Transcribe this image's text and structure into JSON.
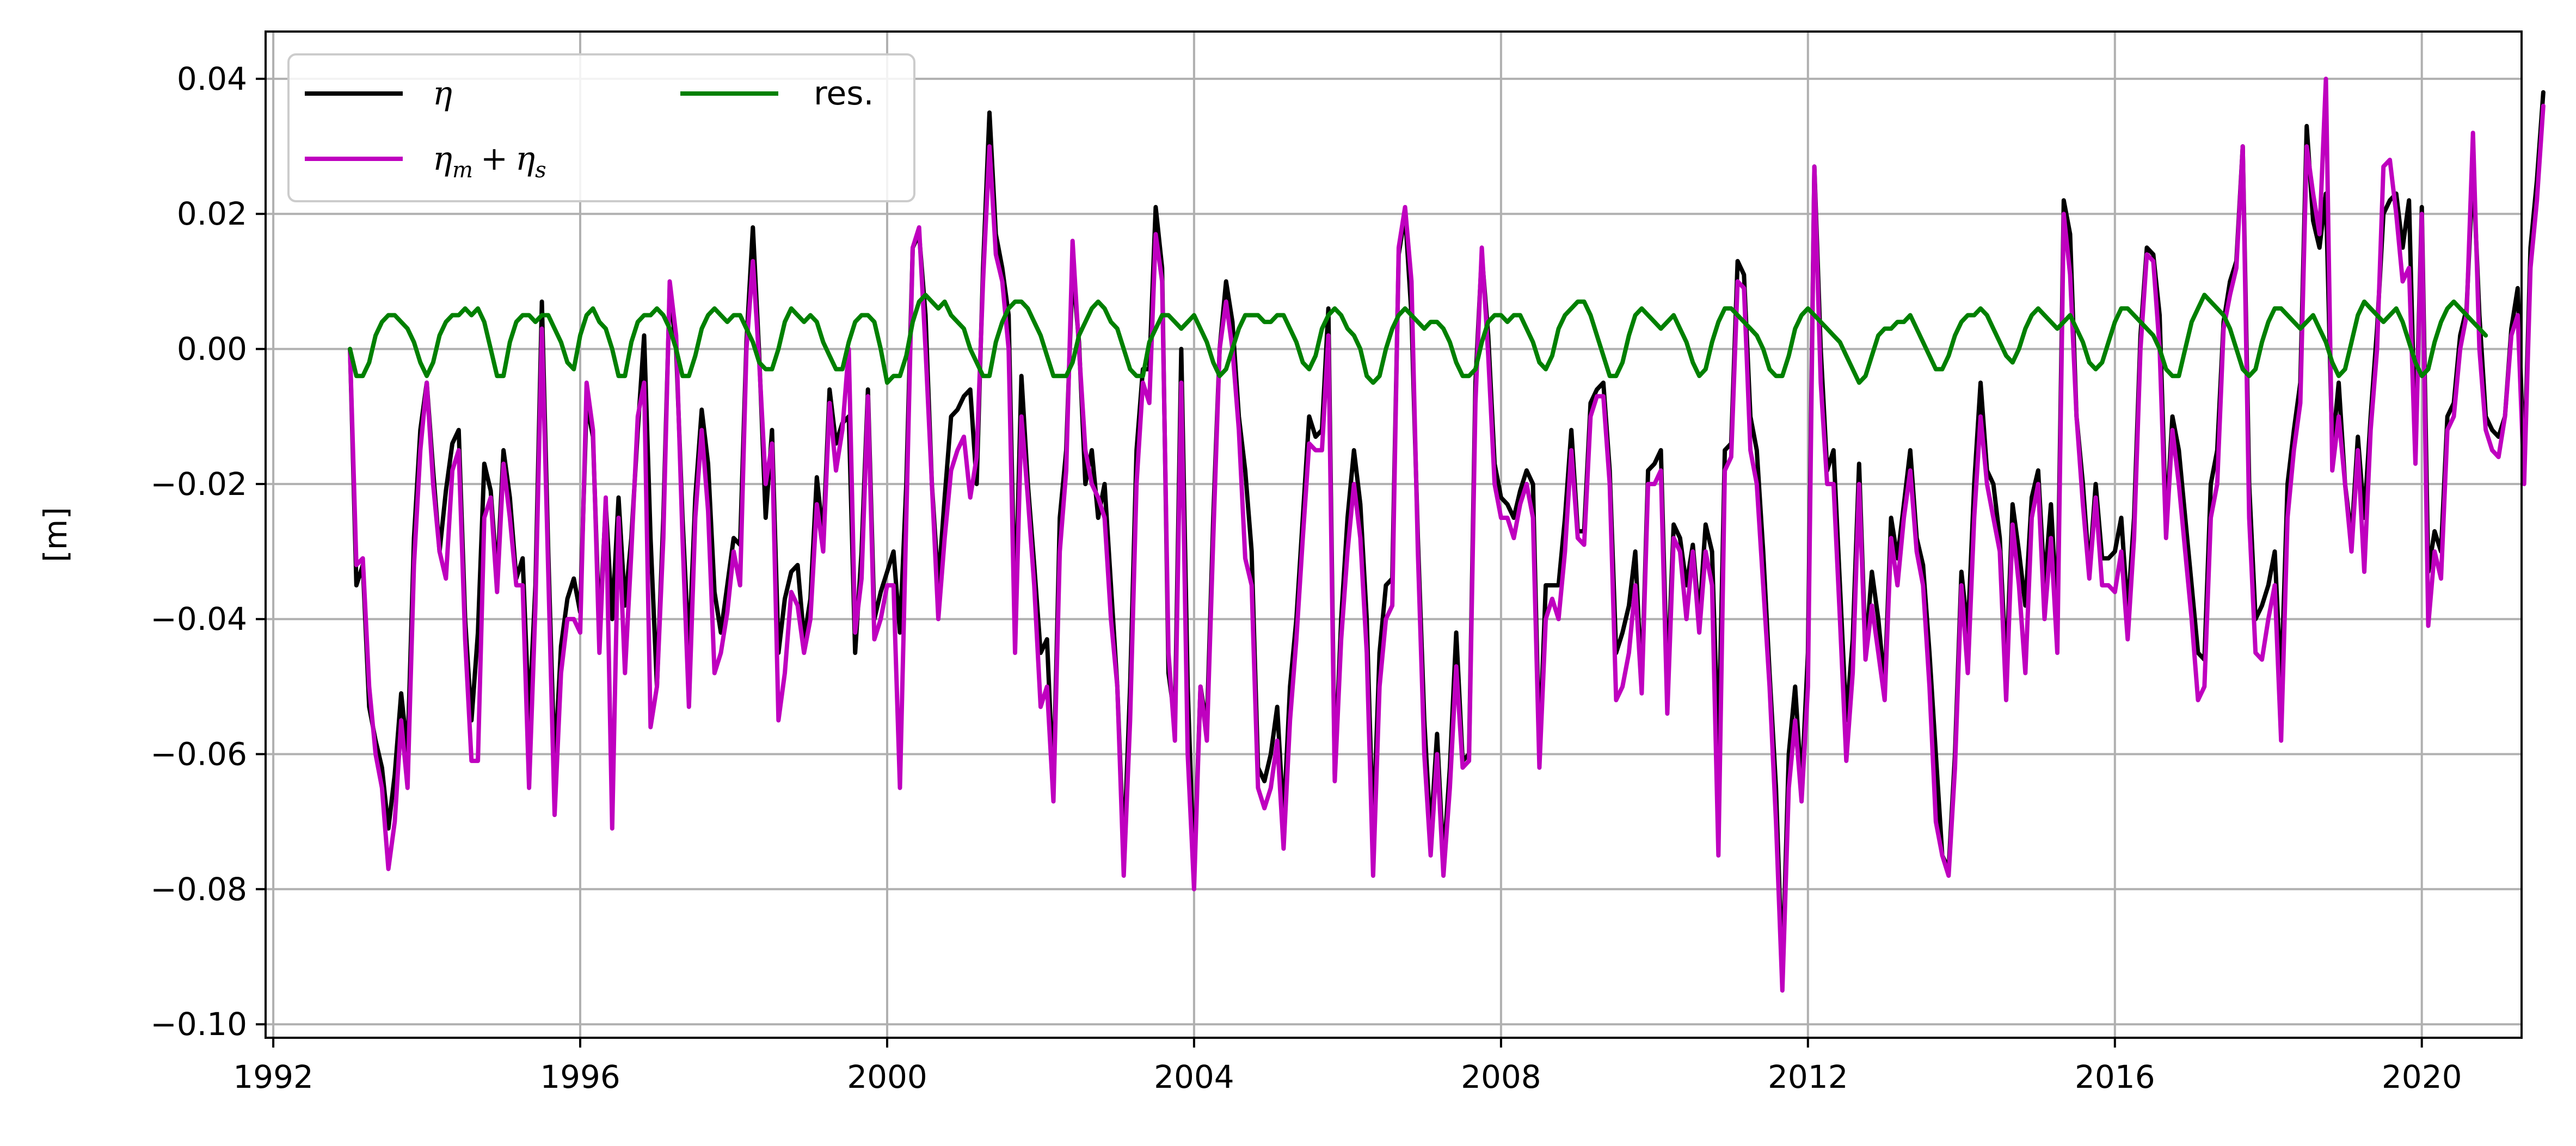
{
  "chart_data": {
    "type": "line",
    "title": "",
    "xlabel": "",
    "ylabel": "[m]",
    "xlim": [
      1991.9,
      2021.3
    ],
    "ylim": [
      -0.102,
      0.047
    ],
    "grid": true,
    "legend_placement": "top-left",
    "x_ticks": [
      1992,
      1996,
      2000,
      2004,
      2008,
      2012,
      2016,
      2020
    ],
    "x_tick_labels": [
      "1992",
      "1996",
      "2000",
      "2004",
      "2008",
      "2012",
      "2016",
      "2020"
    ],
    "y_ticks": [
      0.04,
      0.02,
      0.0,
      -0.02,
      -0.04,
      -0.06,
      -0.08,
      -0.1
    ],
    "y_tick_labels": [
      "0.04",
      "0.02",
      "0.00",
      "−0.02",
      "−0.04",
      "−0.06",
      "−0.08",
      "−0.10"
    ],
    "x_start": 1993.0,
    "x_step_years": 0.0833333,
    "series": [
      {
        "name": "η",
        "color": "#000000",
        "values": [
          0.0,
          -0.035,
          -0.032,
          -0.053,
          -0.058,
          -0.062,
          -0.071,
          -0.063,
          -0.051,
          -0.06,
          -0.028,
          -0.012,
          -0.005,
          -0.018,
          -0.03,
          -0.021,
          -0.014,
          -0.012,
          -0.04,
          -0.055,
          -0.042,
          -0.017,
          -0.021,
          -0.034,
          -0.015,
          -0.022,
          -0.034,
          -0.031,
          -0.055,
          -0.035,
          0.007,
          -0.03,
          -0.062,
          -0.044,
          -0.037,
          -0.034,
          -0.039,
          -0.008,
          -0.013,
          -0.042,
          -0.023,
          -0.04,
          -0.022,
          -0.038,
          -0.028,
          -0.012,
          0.002,
          -0.028,
          -0.05,
          -0.025,
          0.009,
          0.0,
          -0.025,
          -0.045,
          -0.022,
          -0.009,
          -0.017,
          -0.036,
          -0.042,
          -0.035,
          -0.028,
          -0.029,
          0.001,
          0.018,
          -0.001,
          -0.025,
          -0.012,
          -0.045,
          -0.037,
          -0.033,
          -0.032,
          -0.043,
          -0.037,
          -0.019,
          -0.028,
          -0.006,
          -0.014,
          -0.011,
          -0.01,
          -0.045,
          -0.03,
          -0.006,
          -0.04,
          -0.036,
          -0.033,
          -0.03,
          -0.042,
          -0.02,
          0.015,
          0.017,
          0.005,
          -0.02,
          -0.035,
          -0.022,
          -0.01,
          -0.009,
          -0.007,
          -0.006,
          -0.02,
          0.012,
          0.035,
          0.017,
          0.012,
          0.005,
          -0.04,
          -0.004,
          -0.02,
          -0.032,
          -0.045,
          -0.043,
          -0.065,
          -0.025,
          -0.015,
          0.012,
          0.001,
          -0.02,
          -0.015,
          -0.025,
          -0.02,
          -0.035,
          -0.05,
          -0.075,
          -0.05,
          -0.015,
          -0.003,
          -0.003,
          0.021,
          0.012,
          -0.048,
          -0.055,
          0.0,
          -0.05,
          -0.078,
          -0.05,
          -0.056,
          -0.025,
          0.0,
          0.01,
          0.004,
          -0.01,
          -0.018,
          -0.03,
          -0.062,
          -0.064,
          -0.06,
          -0.053,
          -0.07,
          -0.05,
          -0.04,
          -0.025,
          -0.01,
          -0.013,
          -0.012,
          0.006,
          -0.063,
          -0.04,
          -0.025,
          -0.015,
          -0.023,
          -0.04,
          -0.072,
          -0.045,
          -0.035,
          -0.034,
          0.014,
          0.02,
          0.005,
          -0.028,
          -0.055,
          -0.072,
          -0.057,
          -0.076,
          -0.062,
          -0.042,
          -0.061,
          -0.06,
          -0.005,
          0.014,
          0.002,
          -0.017,
          -0.022,
          -0.023,
          -0.025,
          -0.021,
          -0.018,
          -0.02,
          -0.06,
          -0.035,
          -0.035,
          -0.035,
          -0.025,
          -0.012,
          -0.027,
          -0.027,
          -0.008,
          -0.006,
          -0.005,
          -0.018,
          -0.045,
          -0.042,
          -0.038,
          -0.03,
          -0.05,
          -0.018,
          -0.017,
          -0.015,
          -0.05,
          -0.026,
          -0.028,
          -0.035,
          -0.029,
          -0.04,
          -0.026,
          -0.03,
          -0.06,
          -0.015,
          -0.014,
          0.013,
          0.011,
          -0.01,
          -0.015,
          -0.03,
          -0.048,
          -0.065,
          -0.093,
          -0.06,
          -0.05,
          -0.065,
          -0.045,
          0.027,
          0.0,
          -0.018,
          -0.015,
          -0.035,
          -0.055,
          -0.043,
          -0.017,
          -0.045,
          -0.033,
          -0.04,
          -0.05,
          -0.025,
          -0.031,
          -0.023,
          -0.015,
          -0.028,
          -0.032,
          -0.045,
          -0.06,
          -0.075,
          -0.077,
          -0.06,
          -0.033,
          -0.042,
          -0.02,
          -0.005,
          -0.018,
          -0.02,
          -0.028,
          -0.048,
          -0.023,
          -0.03,
          -0.038,
          -0.022,
          -0.018,
          -0.035,
          -0.023,
          -0.04,
          0.022,
          0.017,
          -0.01,
          -0.02,
          -0.033,
          -0.02,
          -0.031,
          -0.031,
          -0.03,
          -0.025,
          -0.039,
          -0.025,
          0.002,
          0.015,
          0.014,
          0.005,
          -0.026,
          -0.01,
          -0.015,
          -0.025,
          -0.035,
          -0.045,
          -0.046,
          -0.02,
          -0.015,
          0.004,
          0.01,
          0.013,
          0.03,
          -0.02,
          -0.04,
          -0.038,
          -0.035,
          -0.03,
          -0.05,
          -0.02,
          -0.012,
          -0.005,
          0.033,
          0.019,
          0.015,
          0.023,
          -0.015,
          -0.005,
          -0.02,
          -0.028,
          -0.013,
          -0.025,
          -0.01,
          0.003,
          0.02,
          0.022,
          0.023,
          0.015,
          0.022,
          -0.015,
          0.021,
          -0.033,
          -0.027,
          -0.03,
          -0.01,
          -0.008,
          0.002,
          0.006,
          0.027,
          0.005,
          -0.01,
          -0.012,
          -0.013,
          -0.01,
          0.003,
          0.009,
          -0.018,
          0.015,
          0.025,
          0.038
        ]
      },
      {
        "name": "ηm + ηs",
        "color": "#bf00bf",
        "values": [
          0.0,
          -0.032,
          -0.031,
          -0.05,
          -0.06,
          -0.065,
          -0.077,
          -0.07,
          -0.055,
          -0.065,
          -0.032,
          -0.015,
          -0.005,
          -0.02,
          -0.03,
          -0.034,
          -0.018,
          -0.015,
          -0.043,
          -0.061,
          -0.061,
          -0.025,
          -0.022,
          -0.036,
          -0.017,
          -0.025,
          -0.035,
          -0.035,
          -0.065,
          -0.038,
          0.003,
          -0.033,
          -0.069,
          -0.048,
          -0.04,
          -0.04,
          -0.042,
          -0.005,
          -0.012,
          -0.045,
          -0.022,
          -0.071,
          -0.025,
          -0.048,
          -0.03,
          -0.01,
          -0.005,
          -0.056,
          -0.05,
          -0.028,
          0.01,
          0.002,
          -0.028,
          -0.053,
          -0.025,
          -0.012,
          -0.024,
          -0.048,
          -0.045,
          -0.039,
          -0.03,
          -0.035,
          0.0,
          0.013,
          -0.002,
          -0.02,
          -0.014,
          -0.055,
          -0.048,
          -0.036,
          -0.038,
          -0.045,
          -0.04,
          -0.023,
          -0.03,
          -0.008,
          -0.018,
          -0.012,
          0.0,
          -0.042,
          -0.034,
          -0.007,
          -0.043,
          -0.04,
          -0.035,
          -0.035,
          -0.065,
          -0.025,
          0.015,
          0.018,
          0.0,
          -0.02,
          -0.04,
          -0.028,
          -0.018,
          -0.015,
          -0.013,
          -0.022,
          -0.016,
          0.01,
          0.03,
          0.014,
          0.01,
          0.0,
          -0.045,
          -0.01,
          -0.022,
          -0.035,
          -0.053,
          -0.05,
          -0.067,
          -0.03,
          -0.018,
          0.016,
          0.0,
          -0.015,
          -0.02,
          -0.022,
          -0.025,
          -0.04,
          -0.05,
          -0.078,
          -0.055,
          -0.02,
          -0.005,
          -0.008,
          0.017,
          0.01,
          -0.045,
          -0.058,
          -0.005,
          -0.06,
          -0.08,
          -0.05,
          -0.058,
          -0.028,
          0.0,
          0.007,
          0.0,
          -0.012,
          -0.031,
          -0.035,
          -0.065,
          -0.068,
          -0.065,
          -0.058,
          -0.074,
          -0.055,
          -0.043,
          -0.028,
          -0.014,
          -0.015,
          -0.015,
          0.002,
          -0.064,
          -0.043,
          -0.03,
          -0.02,
          -0.028,
          -0.045,
          -0.078,
          -0.05,
          -0.04,
          -0.038,
          0.015,
          0.021,
          0.01,
          -0.03,
          -0.06,
          -0.075,
          -0.06,
          -0.078,
          -0.065,
          -0.047,
          -0.062,
          -0.061,
          -0.008,
          0.015,
          -0.001,
          -0.02,
          -0.025,
          -0.025,
          -0.028,
          -0.023,
          -0.02,
          -0.025,
          -0.062,
          -0.04,
          -0.037,
          -0.04,
          -0.03,
          -0.015,
          -0.028,
          -0.029,
          -0.01,
          -0.007,
          -0.007,
          -0.02,
          -0.052,
          -0.05,
          -0.045,
          -0.035,
          -0.051,
          -0.02,
          -0.02,
          -0.018,
          -0.054,
          -0.028,
          -0.03,
          -0.04,
          -0.03,
          -0.042,
          -0.03,
          -0.035,
          -0.075,
          -0.018,
          -0.016,
          0.01,
          0.009,
          -0.015,
          -0.02,
          -0.035,
          -0.05,
          -0.07,
          -0.095,
          -0.065,
          -0.055,
          -0.067,
          -0.05,
          0.027,
          -0.005,
          -0.02,
          -0.02,
          -0.04,
          -0.061,
          -0.048,
          -0.02,
          -0.046,
          -0.038,
          -0.045,
          -0.052,
          -0.028,
          -0.035,
          -0.025,
          -0.018,
          -0.03,
          -0.035,
          -0.05,
          -0.07,
          -0.075,
          -0.078,
          -0.062,
          -0.035,
          -0.048,
          -0.025,
          -0.01,
          -0.02,
          -0.025,
          -0.03,
          -0.052,
          -0.026,
          -0.035,
          -0.048,
          -0.025,
          -0.02,
          -0.04,
          -0.028,
          -0.045,
          0.02,
          0.011,
          -0.01,
          -0.023,
          -0.034,
          -0.022,
          -0.035,
          -0.035,
          -0.036,
          -0.03,
          -0.043,
          -0.028,
          0.0,
          0.014,
          0.013,
          0.0,
          -0.028,
          -0.012,
          -0.02,
          -0.03,
          -0.04,
          -0.052,
          -0.05,
          -0.025,
          -0.02,
          0.003,
          0.008,
          0.012,
          0.03,
          -0.025,
          -0.045,
          -0.046,
          -0.04,
          -0.035,
          -0.058,
          -0.025,
          -0.015,
          -0.008,
          0.03,
          0.023,
          0.017,
          0.04,
          -0.018,
          -0.01,
          -0.02,
          -0.03,
          -0.015,
          -0.033,
          -0.012,
          0.0,
          0.027,
          0.028,
          0.02,
          0.01,
          0.012,
          -0.017,
          0.02,
          -0.041,
          -0.03,
          -0.034,
          -0.012,
          -0.01,
          0.0,
          0.005,
          0.032,
          0.0,
          -0.012,
          -0.015,
          -0.016,
          -0.01,
          0.002,
          0.005,
          -0.02,
          0.012,
          0.022,
          0.036
        ]
      },
      {
        "name": "res.",
        "color": "#008000",
        "values": [
          0.0,
          -0.004,
          -0.004,
          -0.002,
          0.002,
          0.004,
          0.005,
          0.005,
          0.004,
          0.003,
          0.001,
          -0.002,
          -0.004,
          -0.002,
          0.002,
          0.004,
          0.005,
          0.005,
          0.006,
          0.005,
          0.006,
          0.004,
          0.0,
          -0.004,
          -0.004,
          0.001,
          0.004,
          0.005,
          0.005,
          0.004,
          0.005,
          0.005,
          0.003,
          0.001,
          -0.002,
          -0.003,
          0.002,
          0.005,
          0.006,
          0.004,
          0.003,
          0.0,
          -0.004,
          -0.004,
          0.001,
          0.004,
          0.005,
          0.005,
          0.006,
          0.005,
          0.003,
          0.0,
          -0.004,
          -0.004,
          -0.001,
          0.003,
          0.005,
          0.006,
          0.005,
          0.004,
          0.005,
          0.005,
          0.003,
          0.001,
          -0.002,
          -0.003,
          -0.003,
          0.0,
          0.004,
          0.006,
          0.005,
          0.004,
          0.005,
          0.004,
          0.001,
          -0.001,
          -0.003,
          -0.003,
          0.001,
          0.004,
          0.005,
          0.005,
          0.004,
          0.0,
          -0.005,
          -0.004,
          -0.004,
          -0.001,
          0.004,
          0.007,
          0.008,
          0.007,
          0.006,
          0.007,
          0.005,
          0.004,
          0.003,
          0.0,
          -0.002,
          -0.004,
          -0.004,
          0.001,
          0.004,
          0.006,
          0.007,
          0.007,
          0.006,
          0.004,
          0.002,
          -0.001,
          -0.004,
          -0.004,
          -0.004,
          -0.002,
          0.002,
          0.004,
          0.006,
          0.007,
          0.006,
          0.004,
          0.003,
          0.0,
          -0.003,
          -0.004,
          -0.004,
          0.001,
          0.003,
          0.005,
          0.005,
          0.004,
          0.003,
          0.004,
          0.005,
          0.003,
          0.001,
          -0.002,
          -0.004,
          -0.003,
          0.0,
          0.003,
          0.005,
          0.005,
          0.005,
          0.004,
          0.004,
          0.005,
          0.005,
          0.003,
          0.001,
          -0.002,
          -0.003,
          -0.001,
          0.003,
          0.005,
          0.006,
          0.005,
          0.003,
          0.002,
          0.0,
          -0.004,
          -0.005,
          -0.004,
          0.0,
          0.003,
          0.005,
          0.006,
          0.005,
          0.004,
          0.003,
          0.004,
          0.004,
          0.003,
          0.001,
          -0.002,
          -0.004,
          -0.004,
          -0.003,
          0.001,
          0.004,
          0.005,
          0.005,
          0.004,
          0.005,
          0.005,
          0.003,
          0.001,
          -0.002,
          -0.003,
          -0.001,
          0.003,
          0.005,
          0.006,
          0.007,
          0.007,
          0.005,
          0.002,
          -0.001,
          -0.004,
          -0.004,
          -0.002,
          0.002,
          0.005,
          0.006,
          0.005,
          0.004,
          0.003,
          0.004,
          0.005,
          0.003,
          0.001,
          -0.002,
          -0.004,
          -0.003,
          0.001,
          0.004,
          0.006,
          0.006,
          0.005,
          0.004,
          0.003,
          0.002,
          0.0,
          -0.003,
          -0.004,
          -0.004,
          -0.001,
          0.003,
          0.005,
          0.006,
          0.005,
          0.004,
          0.003,
          0.002,
          0.001,
          -0.001,
          -0.003,
          -0.005,
          -0.004,
          -0.001,
          0.002,
          0.003,
          0.003,
          0.004,
          0.004,
          0.005,
          0.003,
          0.001,
          -0.001,
          -0.003,
          -0.003,
          -0.001,
          0.002,
          0.004,
          0.005,
          0.005,
          0.006,
          0.005,
          0.003,
          0.001,
          -0.001,
          -0.002,
          0.0,
          0.003,
          0.005,
          0.006,
          0.005,
          0.004,
          0.003,
          0.004,
          0.005,
          0.003,
          0.001,
          -0.002,
          -0.003,
          -0.002,
          0.001,
          0.004,
          0.006,
          0.006,
          0.005,
          0.004,
          0.003,
          0.002,
          0.0,
          -0.003,
          -0.004,
          -0.004,
          0.0,
          0.004,
          0.006,
          0.008,
          0.007,
          0.006,
          0.005,
          0.003,
          0.0,
          -0.003,
          -0.004,
          -0.003,
          0.001,
          0.004,
          0.006,
          0.006,
          0.005,
          0.004,
          0.003,
          0.004,
          0.005,
          0.003,
          0.001,
          -0.002,
          -0.004,
          -0.003,
          0.001,
          0.005,
          0.007,
          0.006,
          0.005,
          0.004,
          0.005,
          0.006,
          0.004,
          0.001,
          -0.002,
          -0.004,
          -0.003,
          0.001,
          0.004,
          0.006,
          0.007,
          0.006,
          0.005,
          0.004,
          0.003,
          0.002
        ]
      }
    ]
  }
}
